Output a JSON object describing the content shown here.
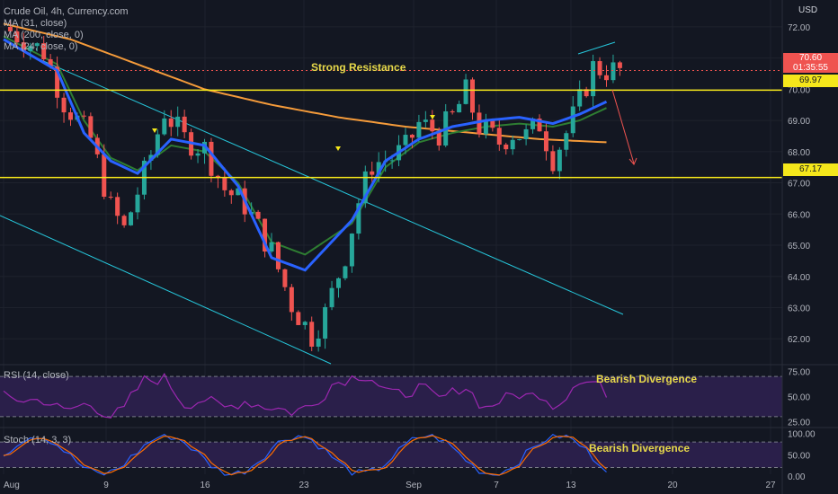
{
  "header": {
    "symbol_line": "Crude Oil, 4h, Currency.com",
    "currency": "USD"
  },
  "legend": {
    "ma1": "MA (31, close)",
    "ma2": "MA (200, close, 0)",
    "ma3": "MA (24, close, 0)"
  },
  "annotations": {
    "resistance": "Strong Resistance",
    "rsi_divergence": "Bearish Divergence",
    "stoch_divergence": "Bearish Divergence"
  },
  "price_labels": {
    "current": "70.60",
    "countdown": "01:35:55",
    "resistance": "69.97",
    "support": "67.17"
  },
  "rsi": {
    "label": "RSI (14, close)"
  },
  "stoch": {
    "label": "Stoch (14, 3, 3)"
  },
  "colors": {
    "background": "#131722",
    "up": "#26a69a",
    "down": "#ef5350",
    "ma31": "#2962ff",
    "ma200": "#f59b3a",
    "ma24": "#2e7d32",
    "level": "#f5e71b",
    "channel": "#26c6da",
    "rsi": "#9c27b0",
    "stoch_k": "#2962ff",
    "stoch_d": "#ff6d00",
    "panel_fill": "#2a1f4a"
  },
  "chart_data": {
    "type": "candlestick",
    "timeframe": "4h",
    "y_axis_ticks": [
      "72.00",
      "71.00",
      "70.00",
      "69.00",
      "68.00",
      "67.00",
      "66.00",
      "65.00",
      "64.00",
      "63.00",
      "62.00"
    ],
    "ylim": [
      61.2,
      72.4
    ],
    "x_axis_ticks": [
      "Aug",
      "9",
      "16",
      "23",
      "Sep",
      "7",
      "13",
      "20",
      "27"
    ],
    "price_path": [
      [
        0,
        72.0
      ],
      [
        6,
        71.2
      ],
      [
        9,
        69.6
      ],
      [
        13,
        68.4
      ],
      [
        16,
        66.2
      ],
      [
        18,
        65.5
      ],
      [
        22,
        67.9
      ],
      [
        24,
        69.3
      ],
      [
        27,
        68.4
      ],
      [
        30,
        68.1
      ],
      [
        33,
        66.8
      ],
      [
        36,
        66.3
      ],
      [
        40,
        64.8
      ],
      [
        43,
        63.1
      ],
      [
        46,
        62.1
      ],
      [
        48,
        62.8
      ],
      [
        51,
        64.7
      ],
      [
        53,
        66.4
      ],
      [
        55,
        67.6
      ],
      [
        58,
        67.8
      ],
      [
        60,
        68.1
      ],
      [
        62,
        68.9
      ],
      [
        65,
        68.6
      ],
      [
        67,
        69.1
      ],
      [
        69,
        69.9
      ],
      [
        71,
        68.8
      ],
      [
        74,
        68.3
      ],
      [
        76,
        68.6
      ],
      [
        78,
        68.5
      ],
      [
        80,
        68.9
      ],
      [
        82,
        67.8
      ],
      [
        84,
        68.6
      ],
      [
        86,
        69.6
      ],
      [
        88,
        70.7
      ],
      [
        90,
        70.6
      ]
    ],
    "ma31_path": [
      [
        0,
        71.6
      ],
      [
        8,
        70.6
      ],
      [
        12,
        68.6
      ],
      [
        16,
        67.7
      ],
      [
        20,
        67.3
      ],
      [
        25,
        68.4
      ],
      [
        30,
        68.2
      ],
      [
        35,
        66.9
      ],
      [
        40,
        64.6
      ],
      [
        45,
        64.2
      ],
      [
        52,
        65.8
      ],
      [
        57,
        67.7
      ],
      [
        62,
        68.4
      ],
      [
        67,
        68.8
      ],
      [
        72,
        69.0
      ],
      [
        77,
        69.1
      ],
      [
        82,
        68.9
      ],
      [
        86,
        69.2
      ],
      [
        90,
        69.6
      ]
    ],
    "ma200_path": [
      [
        0,
        72.1
      ],
      [
        10,
        71.6
      ],
      [
        20,
        70.8
      ],
      [
        30,
        70.0
      ],
      [
        40,
        69.5
      ],
      [
        50,
        69.1
      ],
      [
        60,
        68.8
      ],
      [
        70,
        68.6
      ],
      [
        80,
        68.4
      ],
      [
        90,
        68.3
      ]
    ],
    "ma24_path": [
      [
        0,
        71.7
      ],
      [
        8,
        70.8
      ],
      [
        12,
        69.0
      ],
      [
        16,
        67.8
      ],
      [
        20,
        67.4
      ],
      [
        25,
        68.2
      ],
      [
        30,
        68.0
      ],
      [
        35,
        67.0
      ],
      [
        40,
        65.1
      ],
      [
        45,
        64.7
      ],
      [
        52,
        65.7
      ],
      [
        57,
        67.5
      ],
      [
        62,
        68.3
      ],
      [
        67,
        68.6
      ],
      [
        72,
        68.8
      ],
      [
        77,
        68.9
      ],
      [
        82,
        68.8
      ],
      [
        86,
        69.0
      ],
      [
        90,
        69.4
      ]
    ],
    "levels": [
      {
        "name": "Strong Resistance",
        "value": 69.97
      },
      {
        "name": "",
        "value": 67.17
      }
    ],
    "rsi": {
      "ylim": [
        20,
        80
      ],
      "ticks": [
        "75.00",
        "50.00",
        "25.00"
      ],
      "bands": [
        70,
        30
      ]
    },
    "stoch": {
      "ylim": [
        0,
        110
      ],
      "ticks": [
        "100.00",
        "50.00",
        "0.00"
      ],
      "bands": [
        80,
        20
      ]
    }
  }
}
